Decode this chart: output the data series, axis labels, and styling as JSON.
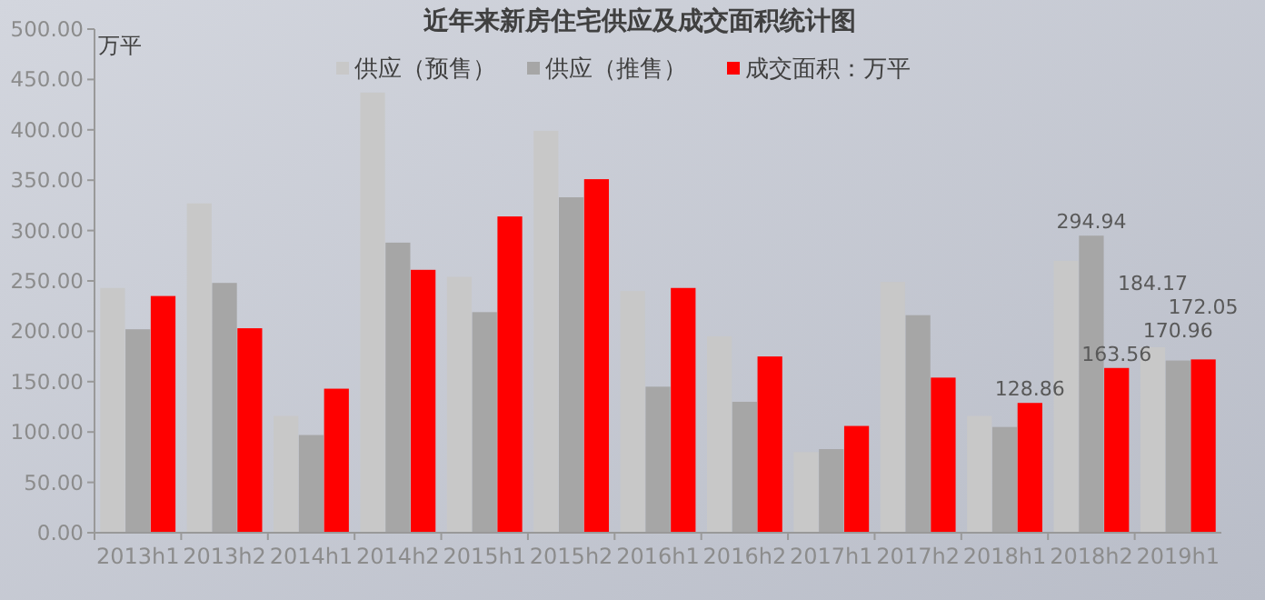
{
  "chart_data": {
    "type": "bar",
    "title": "近年来新房住宅供应及成交面积统计图",
    "ylabel": "万平",
    "categories": [
      "2013h1",
      "2013h2",
      "2014h1",
      "2014h2",
      "2015h1",
      "2015h2",
      "2016h1",
      "2016h2",
      "2017h1",
      "2017h2",
      "2018h1",
      "2018h2",
      "2019h1"
    ],
    "series": [
      {
        "name": "供应（预售）",
        "color": "#c8c8c8",
        "values": [
          243,
          327,
          116,
          437,
          254,
          399,
          240,
          195,
          80,
          249,
          116,
          270,
          184.17
        ],
        "value_labels": [
          null,
          null,
          null,
          null,
          null,
          null,
          null,
          null,
          null,
          null,
          null,
          null,
          "184.17"
        ]
      },
      {
        "name": "供应（推售）",
        "color": "#a6a6a6",
        "values": [
          202,
          248,
          97,
          288,
          219,
          333,
          145,
          130,
          83,
          216,
          105,
          294.94,
          170.96
        ],
        "value_labels": [
          null,
          null,
          null,
          null,
          null,
          null,
          null,
          null,
          null,
          null,
          null,
          "294.94",
          "170.96"
        ]
      },
      {
        "name": "成交面积：万平",
        "color": "#ff0000",
        "values": [
          235,
          203,
          143,
          261,
          314,
          351,
          243,
          175,
          106,
          154,
          128.86,
          163.56,
          172.05
        ],
        "value_labels": [
          null,
          null,
          null,
          null,
          null,
          null,
          null,
          null,
          null,
          null,
          "128.86",
          "163.56",
          "172.05"
        ]
      }
    ],
    "ylim": [
      0,
      500
    ],
    "yticks": [
      {
        "value": 0,
        "label": "0.00"
      },
      {
        "value": 50,
        "label": "50.00"
      },
      {
        "value": 100,
        "label": "100.00"
      },
      {
        "value": 150,
        "label": "150.00"
      },
      {
        "value": 200,
        "label": "200.00"
      },
      {
        "value": 250,
        "label": "250.00"
      },
      {
        "value": 300,
        "label": "300.00"
      },
      {
        "value": 350,
        "label": "350.00"
      },
      {
        "value": 400,
        "label": "400.00"
      },
      {
        "value": 450,
        "label": "450.00"
      },
      {
        "value": 500,
        "label": "500.00"
      }
    ],
    "legend": "top",
    "grid": false
  }
}
